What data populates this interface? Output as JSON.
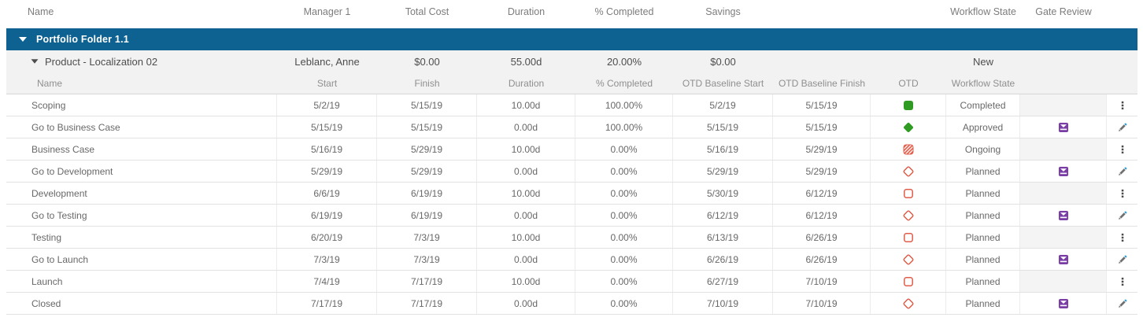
{
  "top_header": {
    "name": "Name",
    "manager": "Manager 1",
    "total_cost": "Total Cost",
    "duration": "Duration",
    "pct_completed": "% Completed",
    "savings": "Savings",
    "workflow_state": "Workflow State",
    "gate_review": "Gate Review"
  },
  "portfolio": {
    "title": "Portfolio Folder 1.1"
  },
  "product": {
    "name": "Product - Localization 02",
    "manager": "Leblanc, Anne",
    "total_cost": "$0.00",
    "duration": "55.00d",
    "pct_completed": "20.00%",
    "savings": "$0.00",
    "workflow_state": "New"
  },
  "sub_header": {
    "name": "Name",
    "start": "Start",
    "finish": "Finish",
    "duration": "Duration",
    "pct_completed": "% Completed",
    "otd_baseline_start": "OTD Baseline Start",
    "otd_baseline_finish": "OTD Baseline Finish",
    "otd": "OTD",
    "workflow_state": "Workflow State"
  },
  "rows": [
    {
      "name": "Scoping",
      "start": "5/2/19",
      "finish": "5/15/19",
      "duration": "10.00d",
      "pct_completed": "100.00%",
      "otd_baseline_start": "5/2/19",
      "otd_baseline_finish": "5/15/19",
      "otd_status": "green-square-filled",
      "workflow_state": "Completed",
      "gate_review": "none",
      "action": "kebab-menu"
    },
    {
      "name": "Go to Business Case",
      "start": "5/15/19",
      "finish": "5/15/19",
      "duration": "0.00d",
      "pct_completed": "100.00%",
      "otd_baseline_start": "5/15/19",
      "otd_baseline_finish": "5/15/19",
      "otd_status": "green-diamond-filled",
      "workflow_state": "Approved",
      "gate_review": "gate-review-badge",
      "action": "edit-pencil"
    },
    {
      "name": "Business Case",
      "start": "5/16/19",
      "finish": "5/29/19",
      "duration": "10.00d",
      "pct_completed": "0.00%",
      "otd_baseline_start": "5/16/19",
      "otd_baseline_finish": "5/29/19",
      "otd_status": "red-square-hatched",
      "workflow_state": "Ongoing",
      "gate_review": "none",
      "action": "kebab-menu"
    },
    {
      "name": "Go to Development",
      "start": "5/29/19",
      "finish": "5/29/19",
      "duration": "0.00d",
      "pct_completed": "0.00%",
      "otd_baseline_start": "5/29/19",
      "otd_baseline_finish": "5/29/19",
      "otd_status": "red-diamond-outline",
      "workflow_state": "Planned",
      "gate_review": "gate-review-badge",
      "action": "edit-pencil"
    },
    {
      "name": "Development",
      "start": "6/6/19",
      "finish": "6/19/19",
      "duration": "10.00d",
      "pct_completed": "0.00%",
      "otd_baseline_start": "5/30/19",
      "otd_baseline_finish": "6/12/19",
      "otd_status": "red-square-outline",
      "workflow_state": "Planned",
      "gate_review": "none",
      "action": "kebab-menu"
    },
    {
      "name": "Go to Testing",
      "start": "6/19/19",
      "finish": "6/19/19",
      "duration": "0.00d",
      "pct_completed": "0.00%",
      "otd_baseline_start": "6/12/19",
      "otd_baseline_finish": "6/12/19",
      "otd_status": "red-diamond-outline",
      "workflow_state": "Planned",
      "gate_review": "gate-review-badge",
      "action": "edit-pencil"
    },
    {
      "name": "Testing",
      "start": "6/20/19",
      "finish": "7/3/19",
      "duration": "10.00d",
      "pct_completed": "0.00%",
      "otd_baseline_start": "6/13/19",
      "otd_baseline_finish": "6/26/19",
      "otd_status": "red-square-outline",
      "workflow_state": "Planned",
      "gate_review": "none",
      "action": "kebab-menu"
    },
    {
      "name": "Go to Launch",
      "start": "7/3/19",
      "finish": "7/3/19",
      "duration": "0.00d",
      "pct_completed": "0.00%",
      "otd_baseline_start": "6/26/19",
      "otd_baseline_finish": "6/26/19",
      "otd_status": "red-diamond-outline",
      "workflow_state": "Planned",
      "gate_review": "gate-review-badge",
      "action": "edit-pencil"
    },
    {
      "name": "Launch",
      "start": "7/4/19",
      "finish": "7/17/19",
      "duration": "10.00d",
      "pct_completed": "0.00%",
      "otd_baseline_start": "6/27/19",
      "otd_baseline_finish": "7/10/19",
      "otd_status": "red-square-outline",
      "workflow_state": "Planned",
      "gate_review": "none",
      "action": "kebab-menu"
    },
    {
      "name": "Closed",
      "start": "7/17/19",
      "finish": "7/17/19",
      "duration": "0.00d",
      "pct_completed": "0.00%",
      "otd_baseline_start": "7/10/19",
      "otd_baseline_finish": "7/10/19",
      "otd_status": "red-diamond-outline",
      "workflow_state": "Planned",
      "gate_review": "gate-review-badge",
      "action": "edit-pencil"
    }
  ],
  "colors": {
    "portfolio_bar": "#0d6292",
    "status_green": "#2f9b22",
    "status_red": "#e25c49",
    "gate_purple": "#7a3da5",
    "pencil_blue": "#2c9fd8",
    "row_gray_bg": "#f2f2f2",
    "empty_gate_bg": "#f4f4f4"
  }
}
